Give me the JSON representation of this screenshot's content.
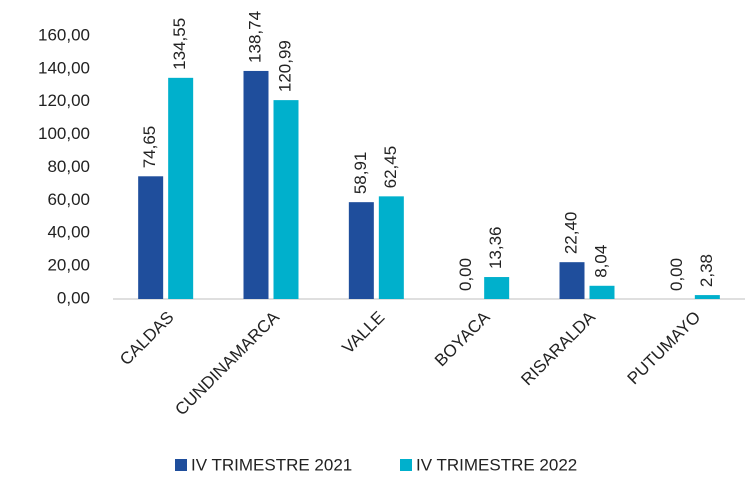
{
  "chart_data": {
    "type": "bar",
    "categories": [
      "CALDAS",
      "CUNDINAMARCA",
      "VALLE",
      "BOYACA",
      "RISARALDA",
      "PUTUMAYO"
    ],
    "series": [
      {
        "name": "IV TRIMESTRE 2021",
        "color": "#1f4e9c",
        "values": [
          74.65,
          138.74,
          58.91,
          0,
          22.4,
          0
        ],
        "value_labels": [
          "74,65",
          "138,74",
          "58,91",
          "0,00",
          "22,40",
          "0,00"
        ]
      },
      {
        "name": "IV TRIMESTRE 2022",
        "color": "#00b0cc",
        "values": [
          134.55,
          120.99,
          62.45,
          13.36,
          8.04,
          2.38
        ],
        "value_labels": [
          "134,55",
          "120,99",
          "62,45",
          "13,36",
          "8,04",
          "2,38"
        ]
      }
    ],
    "ylim": [
      0,
      160
    ],
    "yticks": [
      {
        "value": 0,
        "label": "0,00"
      },
      {
        "value": 20,
        "label": "20,00"
      },
      {
        "value": 40,
        "label": "40,00"
      },
      {
        "value": 60,
        "label": "60,00"
      },
      {
        "value": 80,
        "label": "80,00"
      },
      {
        "value": 100,
        "label": "100,00"
      },
      {
        "value": 120,
        "label": "120,00"
      },
      {
        "value": 140,
        "label": "140,00"
      },
      {
        "value": 160,
        "label": "160,00"
      }
    ],
    "legend": "bottom"
  }
}
